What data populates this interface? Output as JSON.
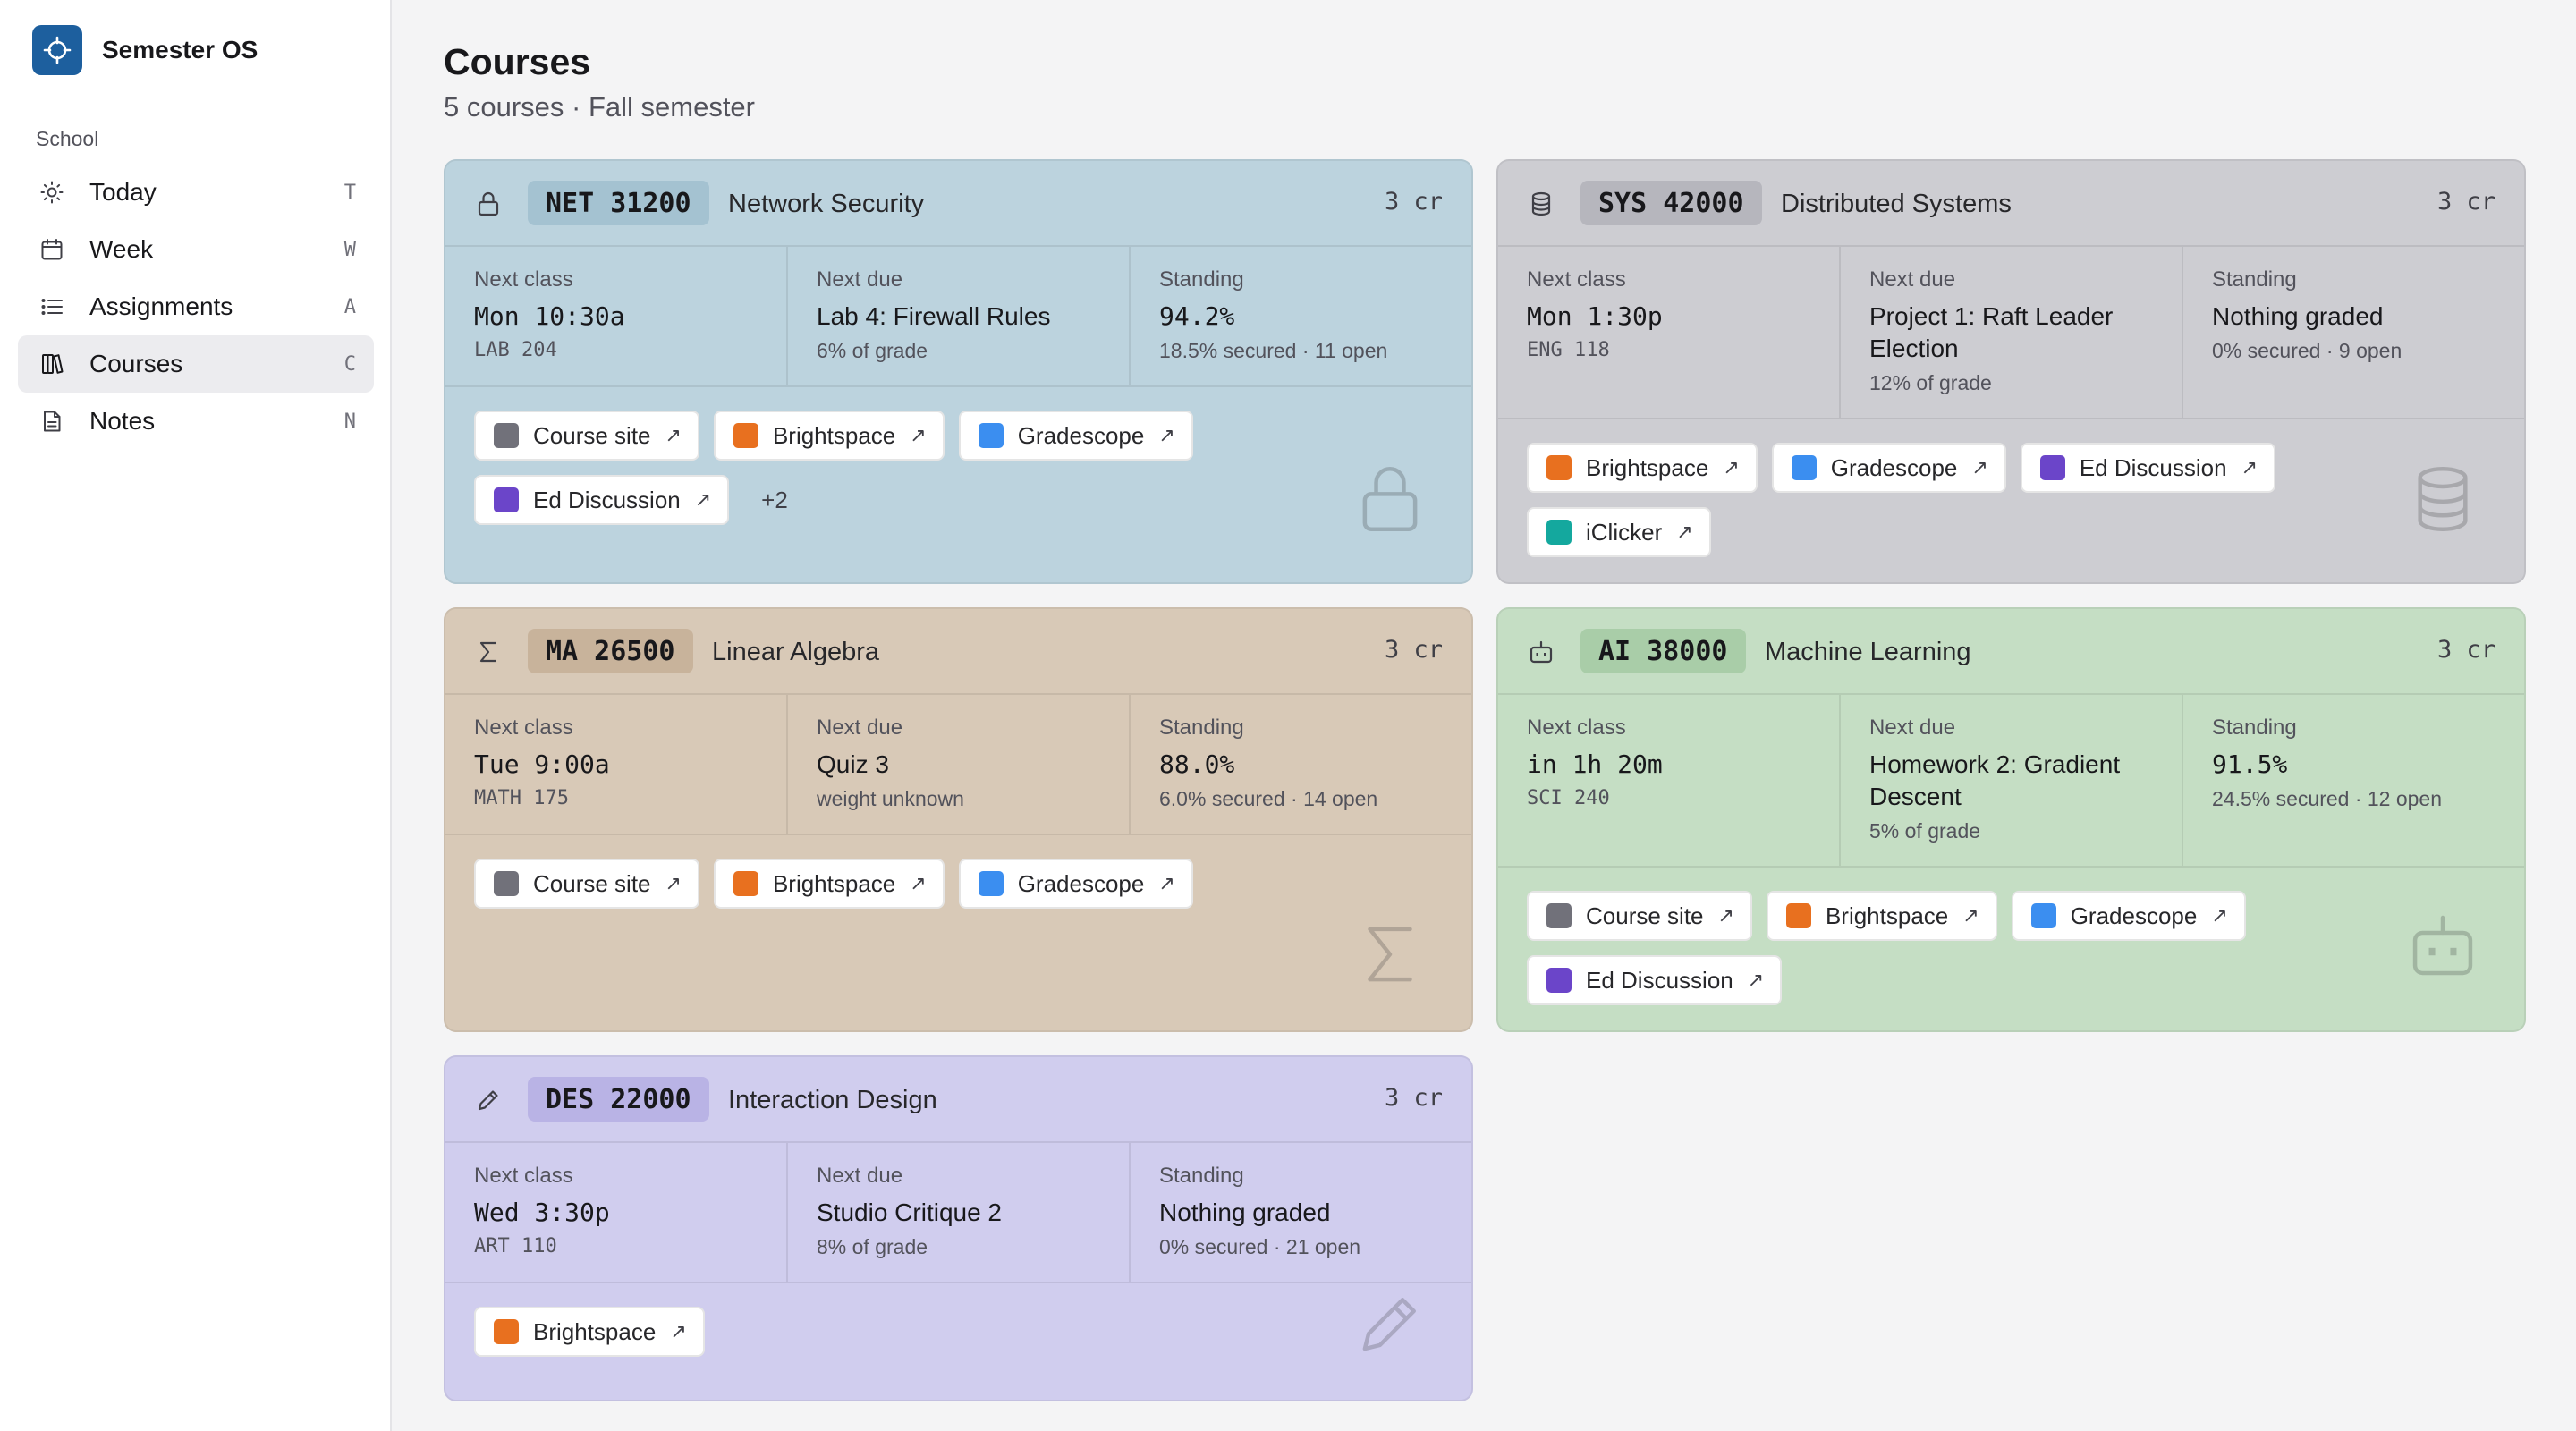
{
  "app": {
    "name": "Semester OS",
    "logo_icon": "target-icon",
    "accent": "#1d5f9e"
  },
  "sidebar": {
    "section_label": "School",
    "items": [
      {
        "label": "Today",
        "key": "T",
        "icon": "sun-icon",
        "active": false
      },
      {
        "label": "Week",
        "key": "W",
        "icon": "calendar-icon",
        "active": false
      },
      {
        "label": "Assignments",
        "key": "A",
        "icon": "list-icon",
        "active": false
      },
      {
        "label": "Courses",
        "key": "C",
        "icon": "book-icon",
        "active": true
      },
      {
        "label": "Notes",
        "key": "N",
        "icon": "document-icon",
        "active": false
      }
    ]
  },
  "page": {
    "title": "Courses",
    "subtitle": "5 courses · Fall semester"
  },
  "labels": {
    "next_class": "Next class",
    "next_due": "Next due",
    "standing": "Standing"
  },
  "link_colors": {
    "Course site": "#71717a",
    "Brightspace": "#e8701f",
    "Gradescope": "#3b8ef0",
    "Ed Discussion": "#6b45c9",
    "iClicker": "#14a89e"
  },
  "courses": [
    {
      "code": "NET 31200",
      "name": "Network Security",
      "credits": "3 cr",
      "icon": "lock-icon",
      "color": "#bcd3de",
      "next_class": "Mon 10:30a",
      "room": "LAB 204",
      "next_due": "Lab 4: Firewall Rules",
      "due_weight": "6% of grade",
      "standing": "94.2%",
      "standing_sub": "18.5% secured · 11 open",
      "links": [
        "Course site",
        "Brightspace",
        "Gradescope",
        "Ed Discussion"
      ],
      "more": "+2"
    },
    {
      "code": "SYS 42000",
      "name": "Distributed Systems",
      "credits": "3 cr",
      "icon": "database-icon",
      "color": "#cdcdd2",
      "next_class": "Mon 1:30p",
      "room": "ENG 118",
      "next_due": "Project 1: Raft Leader Election",
      "due_weight": "12% of grade",
      "standing": "Nothing graded",
      "standing_sub": "0% secured · 9 open",
      "links": [
        "Brightspace",
        "Gradescope",
        "Ed Discussion",
        "iClicker"
      ]
    },
    {
      "code": "MA 26500",
      "name": "Linear Algebra",
      "credits": "3 cr",
      "icon": "sigma-icon",
      "color": "#d8c9b7",
      "next_class": "Tue 9:00a",
      "room": "MATH 175",
      "next_due": "Quiz 3",
      "due_weight": "weight unknown",
      "standing": "88.0%",
      "standing_sub": "6.0% secured · 14 open",
      "links": [
        "Course site",
        "Brightspace",
        "Gradescope"
      ]
    },
    {
      "code": "AI 38000",
      "name": "Machine Learning",
      "credits": "3 cr",
      "icon": "robot-icon",
      "color": "#c5dec4",
      "next_class": "in 1h 20m",
      "room": "SCI 240",
      "next_due": "Homework 2: Gradient Descent",
      "due_weight": "5% of grade",
      "standing": "91.5%",
      "standing_sub": "24.5% secured · 12 open",
      "links": [
        "Course site",
        "Brightspace",
        "Gradescope",
        "Ed Discussion"
      ]
    },
    {
      "code": "DES 22000",
      "name": "Interaction Design",
      "credits": "3 cr",
      "icon": "pencil-icon",
      "color": "#d0cdee",
      "next_class": "Wed 3:30p",
      "room": "ART 110",
      "next_due": "Studio Critique 2",
      "due_weight": "8% of grade",
      "standing": "Nothing graded",
      "standing_sub": "0% secured · 21 open",
      "links": [
        "Brightspace"
      ]
    }
  ]
}
